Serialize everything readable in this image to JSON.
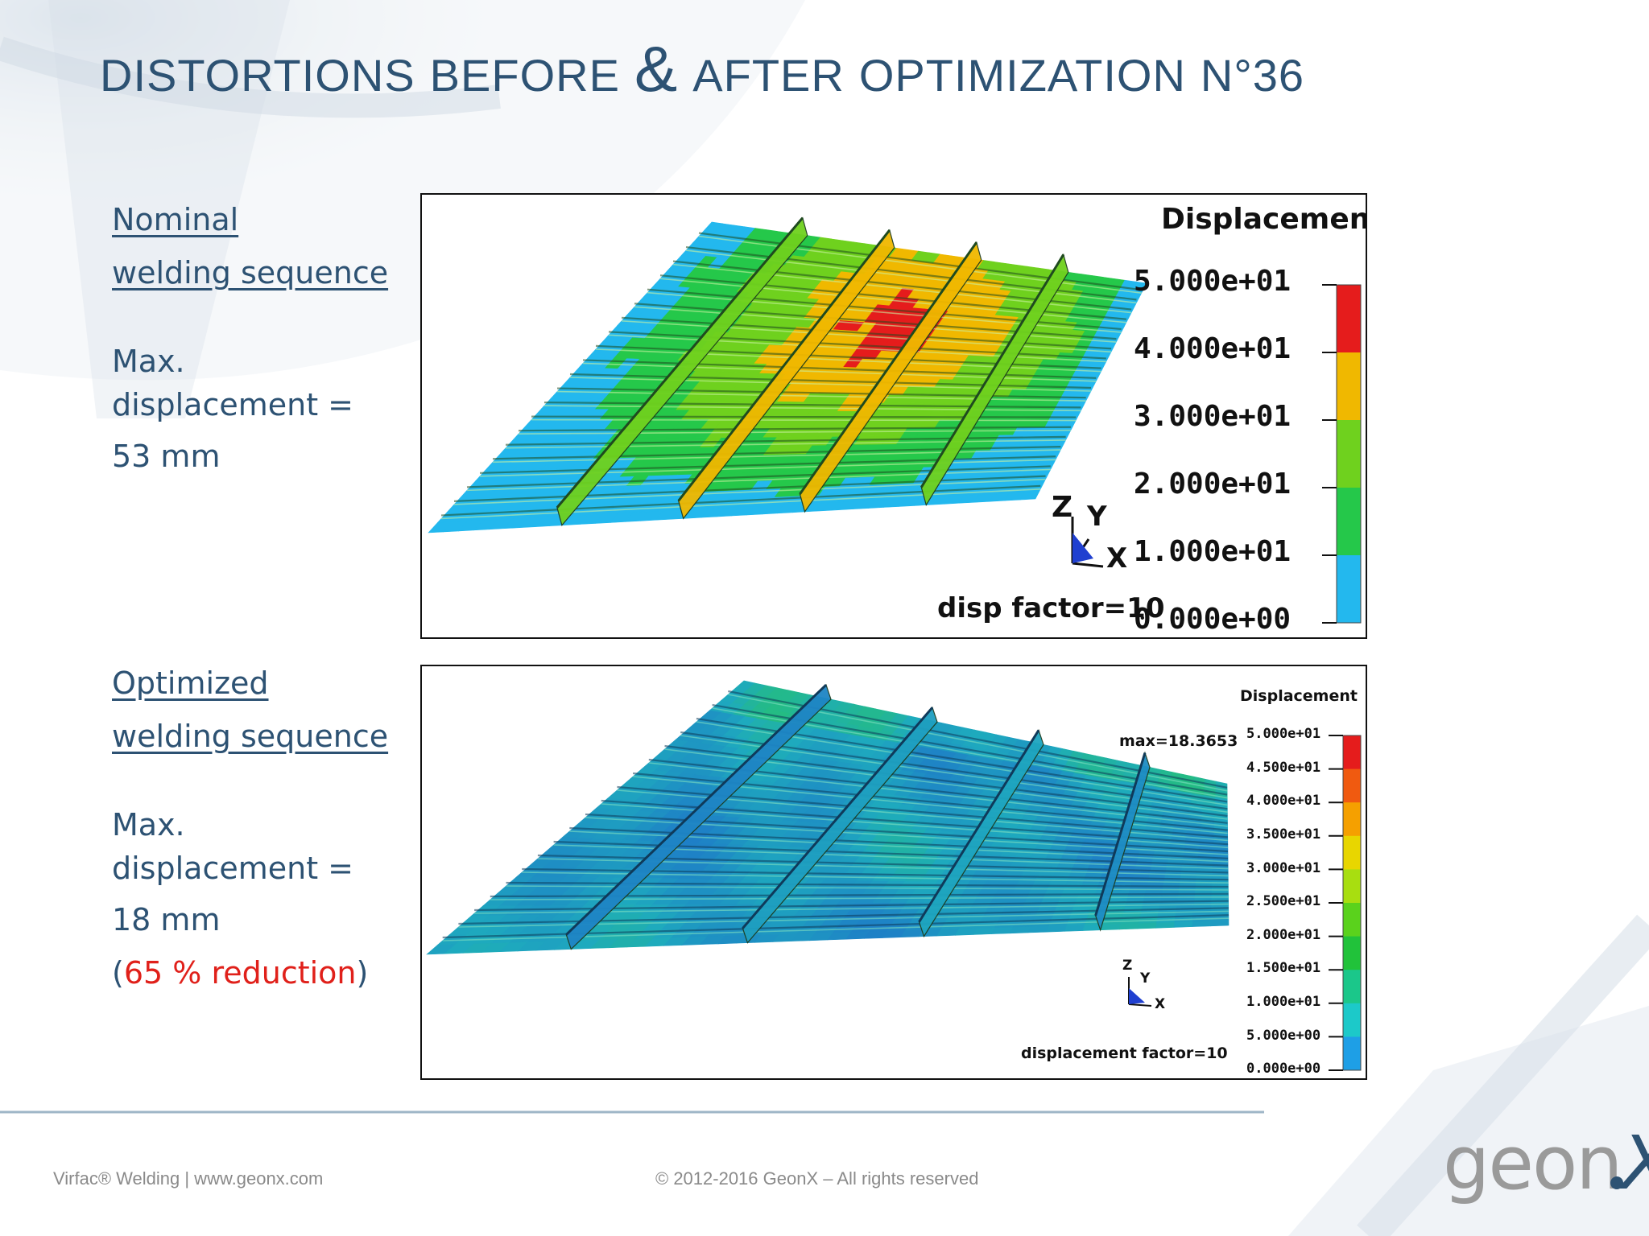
{
  "title": {
    "words": [
      "Distortions",
      "before",
      "&",
      "after",
      "optimization",
      "n°36"
    ]
  },
  "nominal": {
    "heading_line1": "Nominal",
    "heading_line2": "welding sequence",
    "max_line1": "Max.",
    "max_line2": "displacement =",
    "value": "53 mm"
  },
  "optimized": {
    "heading_line1": "Optimized",
    "heading_line2": "welding sequence",
    "max_line1": "Max.",
    "max_line2": "displacement =",
    "value": "18 mm",
    "reduction_open": "(",
    "reduction": "65 % reduction",
    "reduction_close": ")"
  },
  "panel_nominal": {
    "legend_title": "Displacement",
    "ticks": [
      "5.000e+01",
      "4.000e+01",
      "3.000e+01",
      "2.000e+01",
      "1.000e+01",
      "0.000e+00"
    ],
    "colors": [
      "#e51c1c",
      "#f0b800",
      "#6fd11e",
      "#25c84a",
      "#23b8ee"
    ],
    "axis_z": "Z",
    "axis_y": "Y",
    "axis_x": "X",
    "note": "disp factor=10"
  },
  "panel_optimized": {
    "legend_title": "Displacement",
    "max_label": "max=18.3653",
    "ticks": [
      "5.000e+01",
      "4.500e+01",
      "4.000e+01",
      "3.500e+01",
      "3.000e+01",
      "2.500e+01",
      "2.000e+01",
      "1.500e+01",
      "1.000e+01",
      "5.000e+00",
      "0.000e+00"
    ],
    "colors": [
      "#e51c1c",
      "#f05a10",
      "#f5a000",
      "#e8d600",
      "#a8de10",
      "#5ad21c",
      "#21c23a",
      "#1bc78a",
      "#1cc9c9",
      "#1e9fe6"
    ],
    "axis_z": "Z",
    "axis_y": "Y",
    "axis_x": "X",
    "note": "displacement factor=10"
  },
  "footer": {
    "left": "Virfac® Welding | www.geonx.com",
    "center": "© 2012-2016 GeonX – All rights reserved",
    "logo_text": "geon",
    "logo_x": "X"
  }
}
